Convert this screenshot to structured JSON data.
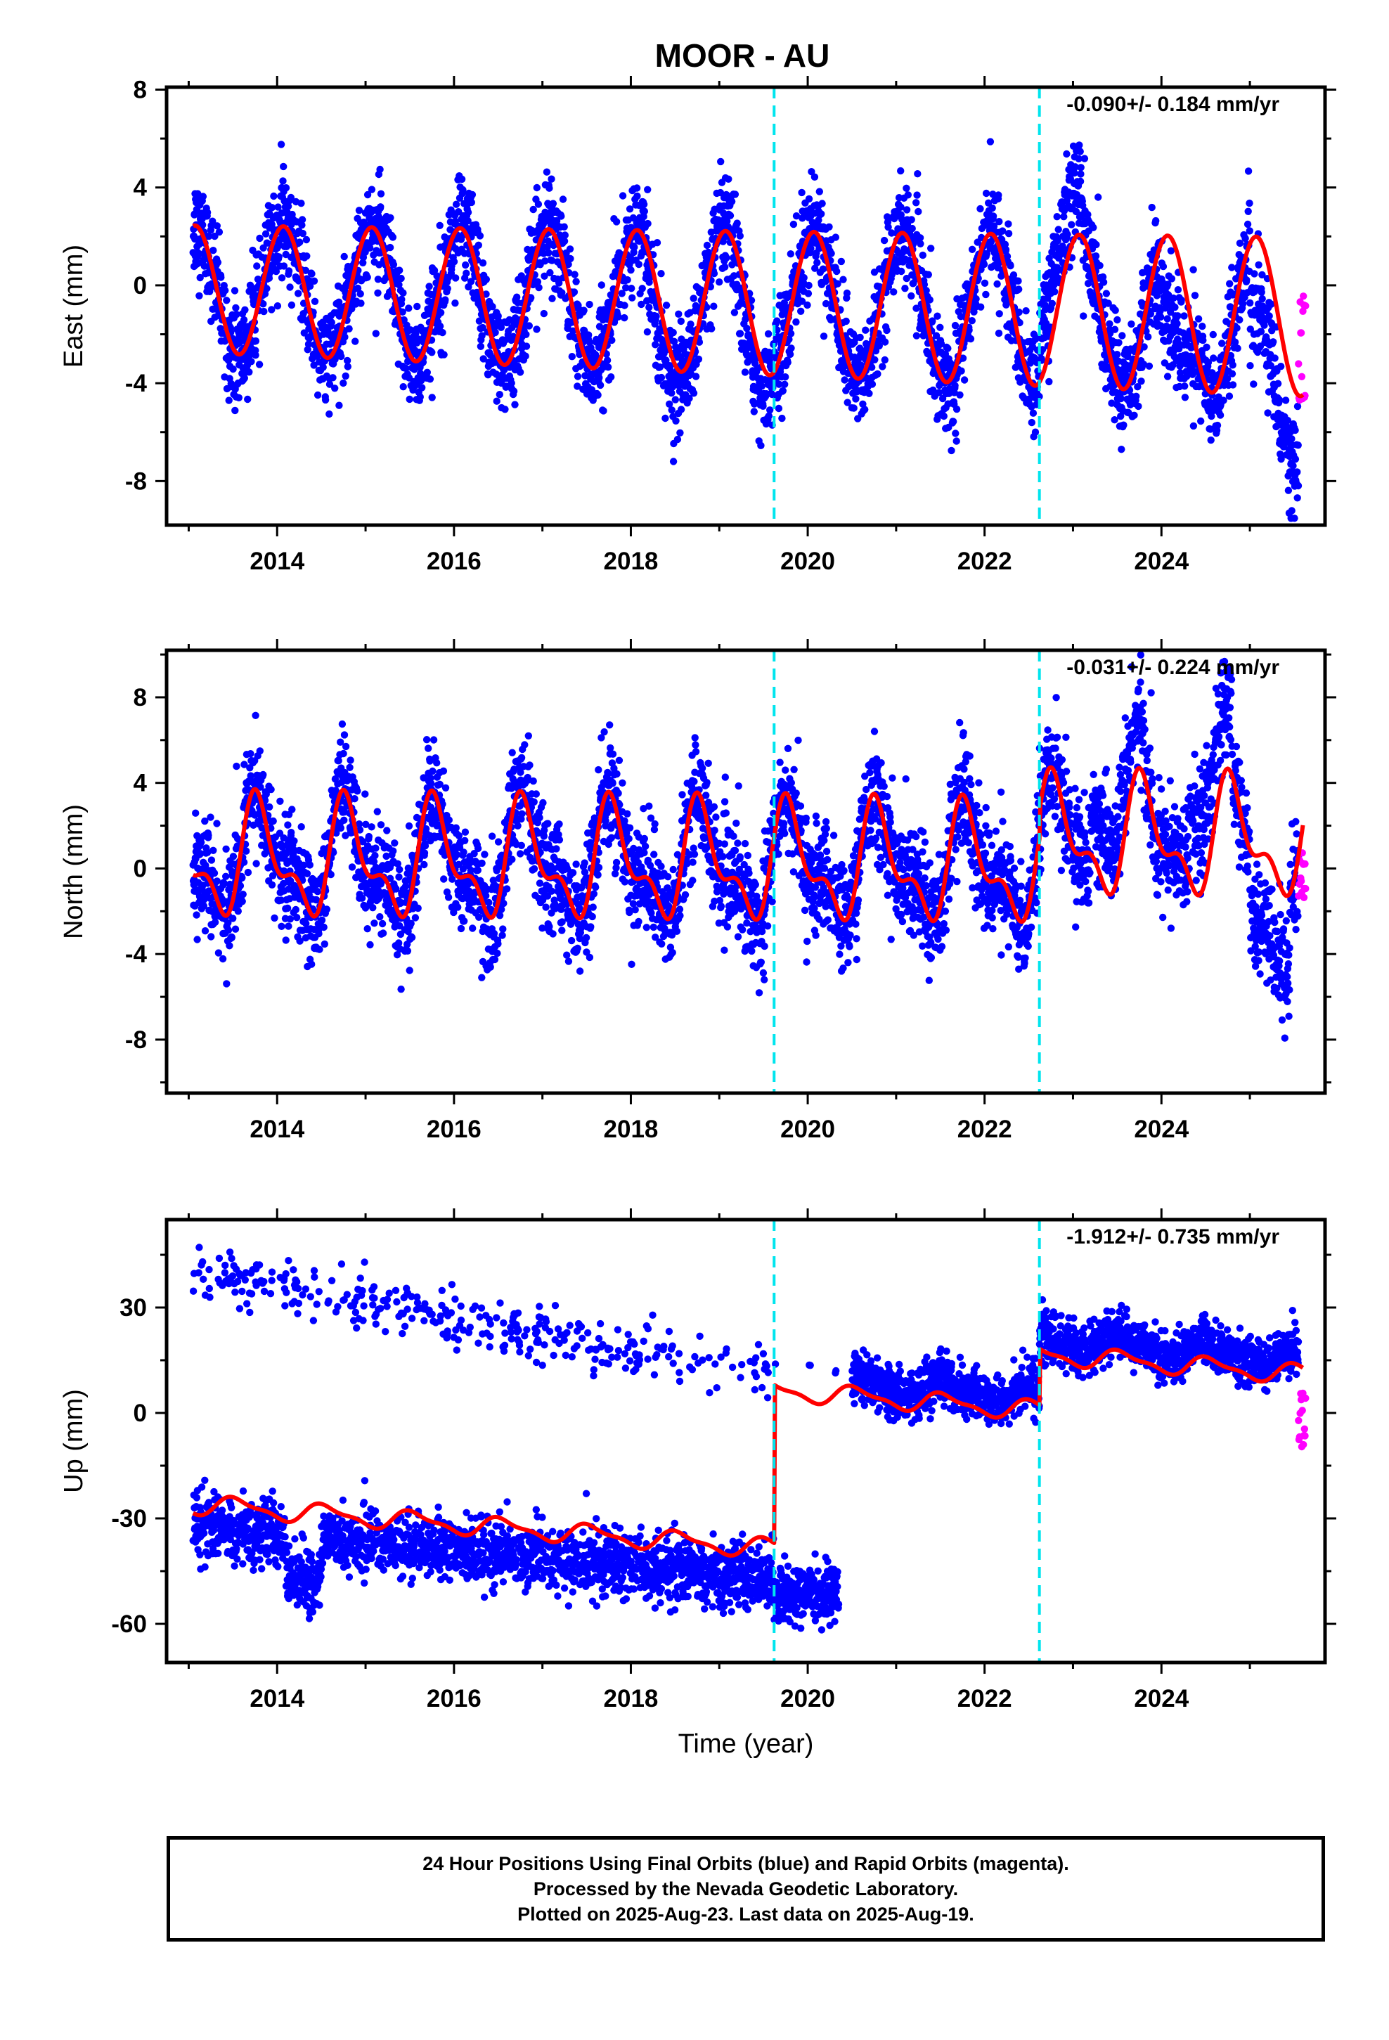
{
  "title": "MOOR - AU",
  "footer": {
    "line1": "24 Hour Positions Using Final Orbits (blue) and Rapid Orbits (magenta).",
    "line2": "Processed by the Nevada Geodetic Laboratory.",
    "line3": "Plotted on 2025-Aug-23. Last data on 2025-Aug-19."
  },
  "colors": {
    "final_orbits": "#0000ff",
    "rapid_orbits": "#ff00ff",
    "model_fit": "#ff0000",
    "equipment_change": "#00e5ee"
  },
  "chart_data": [
    {
      "type": "scatter",
      "title": "MOOR - AU",
      "xlabel": "",
      "ylabel": "East (mm)",
      "xlim": [
        2012.75,
        2025.85
      ],
      "ylim": [
        -9.8,
        8.1
      ],
      "xticks": [
        2014,
        2016,
        2018,
        2020,
        2022,
        2024
      ],
      "yticks": [
        -8,
        -4,
        0,
        4,
        8
      ],
      "rate_label": "-0.090+/- 0.184 mm/yr",
      "vlines": [
        2019.62,
        2022.62
      ],
      "model": {
        "offset": -0.15,
        "trend": -0.09,
        "amp": 2.6,
        "phase": 0.82,
        "semi": 0,
        "semi_phase": 0,
        "amp_growth": 0.02,
        "steps": [
          0,
          0
        ],
        "t0": 2013.05,
        "t_end": 2025.6
      },
      "scatter_model": {
        "noise": 1.05,
        "extra": "east"
      },
      "series": [
        {
          "name": "Final Orbits",
          "color": "#0000ff",
          "x_range": [
            2013.05,
            2025.55
          ]
        },
        {
          "name": "Rapid Orbits",
          "color": "#ff00ff",
          "x_range": [
            2025.55,
            2025.63
          ],
          "y_range": [
            -4.7,
            -0.2
          ]
        },
        {
          "name": "Model",
          "color": "#ff0000"
        }
      ]
    },
    {
      "type": "scatter",
      "xlabel": "",
      "ylabel": "North (mm)",
      "xlim": [
        2012.75,
        2025.85
      ],
      "ylim": [
        -10.5,
        10.2
      ],
      "xticks": [
        2014,
        2016,
        2018,
        2020,
        2022,
        2024
      ],
      "yticks": [
        -8,
        -4,
        0,
        4,
        8
      ],
      "rate_label": "-0.031+/- 0.224 mm/yr",
      "vlines": [
        2019.62,
        2022.62
      ],
      "model": {
        "offset": 0.4,
        "trend": -0.031,
        "amp": 2.3,
        "phase": 0.55,
        "semi": 1.2,
        "semi_phase": 0.1,
        "amp_growth": 0,
        "steps": [
          0,
          1.3
        ],
        "t0": 2013.05,
        "t_end": 2025.6
      },
      "scatter_model": {
        "noise": 1.25,
        "extra": "north"
      },
      "series": [
        {
          "name": "Final Orbits",
          "color": "#0000ff",
          "x_range": [
            2013.05,
            2025.55
          ]
        },
        {
          "name": "Rapid Orbits",
          "color": "#ff00ff",
          "x_range": [
            2025.55,
            2025.63
          ],
          "y_range": [
            -1.4,
            1.1
          ]
        },
        {
          "name": "Model",
          "color": "#ff0000"
        }
      ]
    },
    {
      "type": "scatter",
      "xlabel": "Time (year)",
      "ylabel": "Up (mm)",
      "xlim": [
        2012.75,
        2025.85
      ],
      "ylim": [
        -71,
        55
      ],
      "xticks": [
        2014,
        2016,
        2018,
        2020,
        2022,
        2024
      ],
      "yticks": [
        -60,
        -30,
        0,
        30
      ],
      "rate_label": "-1.912+/- 0.735 mm/yr",
      "vlines": [
        2019.62,
        2022.62
      ],
      "model": {
        "offset": -26,
        "trend": -1.912,
        "amp": 2.5,
        "phase": 0.3,
        "semi": 0.9,
        "semi_phase": 0.3,
        "amp_growth": 0,
        "steps": [
          45,
          16
        ],
        "t0": 2013.05,
        "t_end": 2025.6
      },
      "scatter_model": {
        "noise": 4.2,
        "extra": "up"
      },
      "series": [
        {
          "name": "Final Orbits",
          "color": "#0000ff",
          "x_range": [
            2013.05,
            2025.55
          ]
        },
        {
          "name": "Rapid Orbits",
          "color": "#ff00ff",
          "x_range": [
            2025.55,
            2025.63
          ],
          "y_range": [
            -11,
            8
          ]
        },
        {
          "name": "Model",
          "color": "#ff0000"
        }
      ]
    }
  ]
}
